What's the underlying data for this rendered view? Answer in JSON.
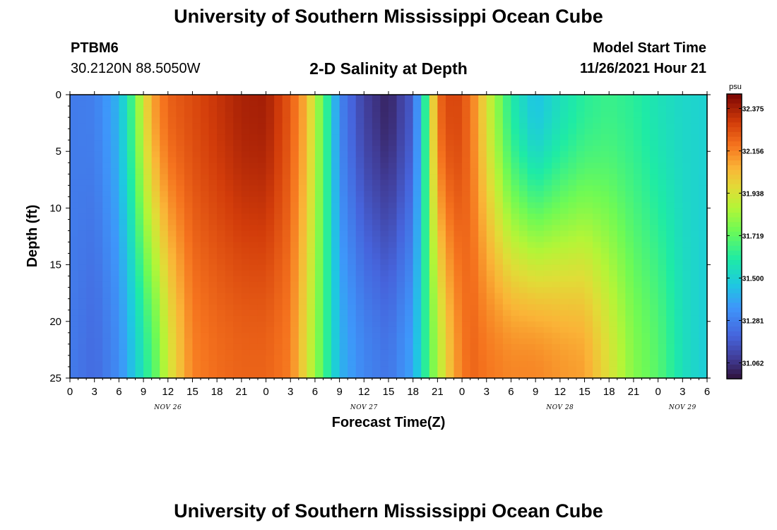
{
  "header": {
    "title": "University of Southern Mississippi Ocean Cube",
    "station": "PTBM6",
    "coords": "30.2120N  88.5050W",
    "subtitle": "2-D Salinity at Depth",
    "model_start_label": "Model Start Time",
    "model_start_value": "11/26/2021 Hour 21"
  },
  "footer": {
    "title": "University of Southern Mississippi Ocean Cube"
  },
  "chart_data": {
    "type": "heatmap",
    "title": "2-D Salinity at Depth",
    "xlabel": "Forecast Time(Z)",
    "ylabel": "Depth (ft)",
    "x_tick_labels": [
      "0",
      "3",
      "6",
      "9",
      "12",
      "15",
      "18",
      "21",
      "0",
      "3",
      "6",
      "9",
      "12",
      "15",
      "18",
      "21",
      "0",
      "3",
      "6",
      "9",
      "12",
      "15",
      "18",
      "21",
      "0",
      "3",
      "6"
    ],
    "day_labels": [
      {
        "text": "NOV 26",
        "x_hours": 12
      },
      {
        "text": "NOV 27",
        "x_hours": 36
      },
      {
        "text": "NOV 28",
        "x_hours": 60
      },
      {
        "text": "NOV 29",
        "x_hours": 75
      }
    ],
    "x_range_hours": [
      0,
      78
    ],
    "y_ticks": [
      0,
      5,
      10,
      15,
      20,
      25
    ],
    "ylim": [
      0,
      25
    ],
    "colorbar": {
      "unit": "psu",
      "min": 30.98,
      "max": 32.45,
      "tick_labels": [
        "32.375",
        "32.156",
        "31.938",
        "31.719",
        "31.500",
        "31.281",
        "31.062"
      ]
    },
    "column_profiles_surface_bottom": [
      {
        "hour": 0,
        "surface": 31.27,
        "bottom": 31.27
      },
      {
        "hour": 3,
        "surface": 31.28,
        "bottom": 31.22
      },
      {
        "hour": 6,
        "surface": 31.42,
        "bottom": 31.32
      },
      {
        "hour": 8,
        "surface": 31.72,
        "bottom": 31.48
      },
      {
        "hour": 9,
        "surface": 31.95,
        "bottom": 31.58
      },
      {
        "hour": 10.5,
        "surface": 32.12,
        "bottom": 31.72
      },
      {
        "hour": 12,
        "surface": 32.22,
        "bottom": 31.92
      },
      {
        "hour": 15,
        "surface": 32.27,
        "bottom": 32.16
      },
      {
        "hour": 18,
        "surface": 32.32,
        "bottom": 32.2
      },
      {
        "hour": 21,
        "surface": 32.37,
        "bottom": 32.22
      },
      {
        "hour": 24,
        "surface": 32.38,
        "bottom": 32.22
      },
      {
        "hour": 27,
        "surface": 32.24,
        "bottom": 32.17
      },
      {
        "hour": 29,
        "surface": 32.06,
        "bottom": 31.95
      },
      {
        "hour": 30,
        "surface": 31.88,
        "bottom": 31.82
      },
      {
        "hour": 31.5,
        "surface": 31.62,
        "bottom": 31.62
      },
      {
        "hour": 33,
        "surface": 31.3,
        "bottom": 31.42
      },
      {
        "hour": 36,
        "surface": 31.1,
        "bottom": 31.3
      },
      {
        "hour": 39,
        "surface": 31.02,
        "bottom": 31.25
      },
      {
        "hour": 42,
        "surface": 31.18,
        "bottom": 31.38
      },
      {
        "hour": 43.5,
        "surface": 31.62,
        "bottom": 31.62
      },
      {
        "hour": 45,
        "surface": 32.2,
        "bottom": 31.85
      },
      {
        "hour": 47,
        "surface": 32.3,
        "bottom": 32.1
      },
      {
        "hour": 49,
        "surface": 32.2,
        "bottom": 32.22
      },
      {
        "hour": 51,
        "surface": 31.95,
        "bottom": 32.18
      },
      {
        "hour": 54,
        "surface": 31.6,
        "bottom": 32.15
      },
      {
        "hour": 57,
        "surface": 31.45,
        "bottom": 32.15
      },
      {
        "hour": 60,
        "surface": 31.55,
        "bottom": 32.12
      },
      {
        "hour": 63,
        "surface": 31.62,
        "bottom": 32.1
      },
      {
        "hour": 66,
        "surface": 31.65,
        "bottom": 31.95
      },
      {
        "hour": 69,
        "surface": 31.62,
        "bottom": 31.78
      },
      {
        "hour": 72,
        "surface": 31.56,
        "bottom": 31.7
      },
      {
        "hour": 75,
        "surface": 31.52,
        "bottom": 31.55
      },
      {
        "hour": 78,
        "surface": 31.5,
        "bottom": 31.48
      }
    ]
  }
}
